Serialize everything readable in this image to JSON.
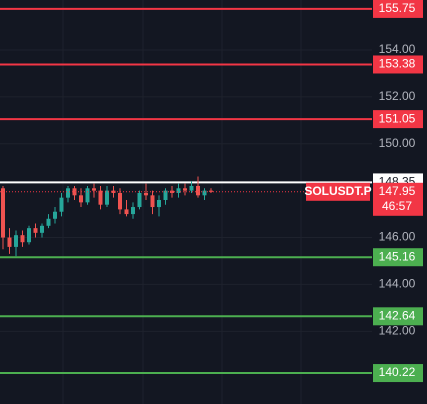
{
  "chart_data": {
    "type": "candlestick",
    "symbol": "SOLUSDT.P",
    "countdown": "46:57",
    "last_price": 147.95,
    "last_price_color": "#f23645",
    "up_color": "#26a69a",
    "down_color": "#ef5350",
    "open": [
      148.1,
      146.0,
      145.6,
      146.1,
      145.8,
      146.4,
      146.2,
      146.5,
      146.8,
      147.1,
      147.7,
      148.1,
      147.8,
      147.5,
      148.1,
      148.0,
      147.4,
      148.0,
      147.9,
      147.2,
      147.0,
      147.3,
      147.9,
      147.8,
      147.3,
      147.6,
      148.0,
      147.9,
      148.1,
      148.0,
      148.2,
      147.8,
      148.0
    ],
    "high": [
      148.2,
      146.4,
      146.3,
      146.3,
      146.5,
      146.6,
      146.6,
      147.0,
      147.3,
      147.9,
      148.2,
      148.2,
      148.1,
      148.2,
      148.3,
      148.2,
      148.2,
      148.2,
      148.1,
      147.6,
      147.5,
      148.0,
      148.3,
      148.0,
      147.8,
      148.1,
      148.2,
      148.3,
      148.3,
      148.4,
      148.6,
      148.1,
      148.1
    ],
    "low": [
      145.5,
      145.3,
      145.2,
      145.6,
      145.7,
      146.0,
      146.0,
      146.4,
      146.6,
      146.9,
      147.5,
      147.6,
      147.3,
      147.4,
      147.7,
      147.2,
      147.3,
      147.7,
      147.0,
      146.9,
      146.8,
      147.2,
      147.6,
      147.0,
      146.9,
      147.4,
      147.7,
      147.7,
      147.8,
      147.9,
      147.7,
      147.6,
      147.9
    ],
    "close": [
      146.0,
      145.6,
      146.1,
      145.8,
      146.4,
      146.2,
      146.5,
      146.8,
      147.1,
      147.7,
      148.1,
      147.8,
      147.5,
      148.1,
      148.0,
      147.4,
      148.0,
      147.9,
      147.2,
      147.0,
      147.3,
      147.9,
      147.8,
      147.3,
      147.6,
      148.0,
      147.9,
      148.1,
      148.0,
      148.2,
      147.8,
      148.0,
      147.95
    ],
    "levels": [
      {
        "value": 155.75,
        "color": "#f23645"
      },
      {
        "value": 153.38,
        "color": "#f23645"
      },
      {
        "value": 151.05,
        "color": "#f23645"
      },
      {
        "value": 148.35,
        "color": "#ffffff"
      },
      {
        "value": 145.16,
        "color": "#4caf50"
      },
      {
        "value": 142.64,
        "color": "#4caf50"
      },
      {
        "value": 140.22,
        "color": "#4caf50"
      }
    ],
    "ylim": [
      138.9,
      156.13
    ],
    "yticks": [
      {
        "value": 154,
        "label": "154.00"
      },
      {
        "value": 152,
        "label": "152.00"
      },
      {
        "value": 150,
        "label": "150.00"
      },
      {
        "value": 146,
        "label": "146.00"
      },
      {
        "value": 144,
        "label": "144.00"
      },
      {
        "value": 142,
        "label": "142.00"
      }
    ],
    "grid": true
  }
}
